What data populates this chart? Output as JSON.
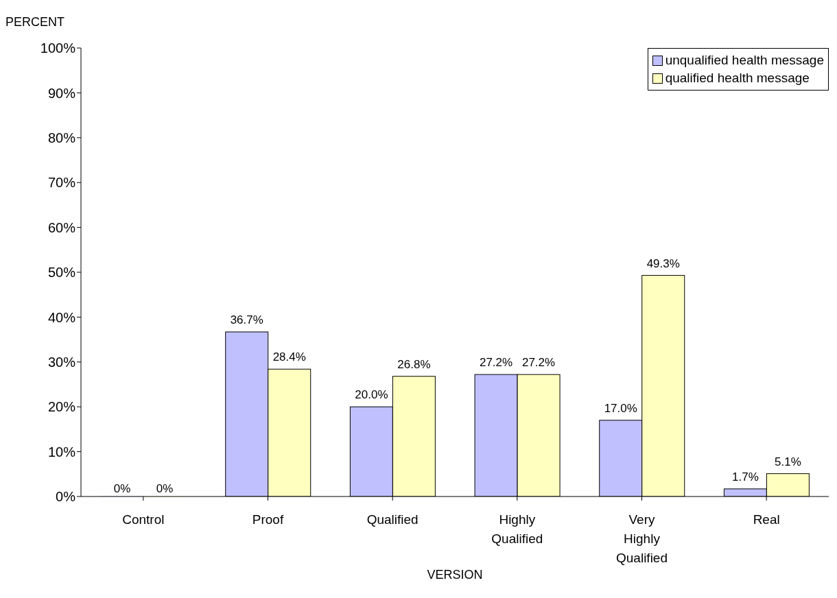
{
  "chart_data": {
    "type": "bar",
    "xlabel": "VERSION",
    "ylabel": "PERCENT",
    "categories": [
      "Control",
      "Proof",
      "Qualified",
      "Highly Qualified",
      "Very Highly Qualified",
      "Real"
    ],
    "series": [
      {
        "name": "unqualified health message",
        "color": "#c0c0ff",
        "values": [
          0,
          36.7,
          20.0,
          27.2,
          17.0,
          1.7
        ],
        "value_labels": [
          "0%",
          "36.7%",
          "20.0%",
          "27.2%",
          "17.0%",
          "1.7%"
        ]
      },
      {
        "name": "qualified health message",
        "color": "#ffffc0",
        "values": [
          0,
          28.4,
          26.8,
          27.2,
          49.3,
          5.1
        ],
        "value_labels": [
          "0%",
          "28.4%",
          "26.8%",
          "27.2%",
          "49.3%",
          "5.1%"
        ]
      }
    ],
    "ylim": [
      0,
      100
    ],
    "yticks": [
      {
        "value": 0,
        "label": "0%"
      },
      {
        "value": 10,
        "label": "10%"
      },
      {
        "value": 20,
        "label": "20%"
      },
      {
        "value": 30,
        "label": "30%"
      },
      {
        "value": 40,
        "label": "40%"
      },
      {
        "value": 50,
        "label": "50%"
      },
      {
        "value": 60,
        "label": "60%"
      },
      {
        "value": 70,
        "label": "70%"
      },
      {
        "value": 80,
        "label": "80%"
      },
      {
        "value": 90,
        "label": "90%"
      },
      {
        "value": 100,
        "label": "100%"
      }
    ],
    "grid": false,
    "legend": "top right"
  }
}
